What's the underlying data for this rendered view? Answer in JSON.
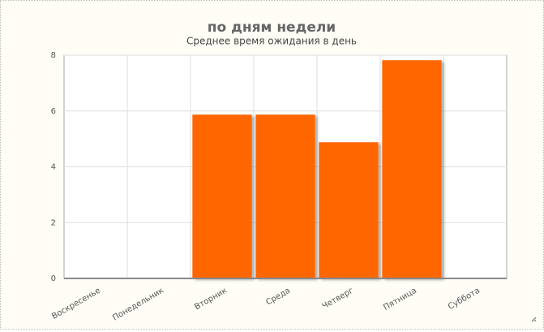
{
  "chart_data": {
    "type": "bar",
    "title": "по дням недели",
    "subtitle": "Среднее время ожидания в день",
    "categories": [
      "Воскресенье",
      "Понедельник",
      "Вторник",
      "Среда",
      "Четверг",
      "Пятница",
      "Суббота"
    ],
    "values": [
      0,
      0,
      5.87,
      5.87,
      4.88,
      7.82,
      0
    ],
    "color": "#ff6600",
    "ylim": [
      0,
      8
    ],
    "yticks": [
      0,
      2,
      4,
      6,
      8
    ],
    "grid": true
  }
}
